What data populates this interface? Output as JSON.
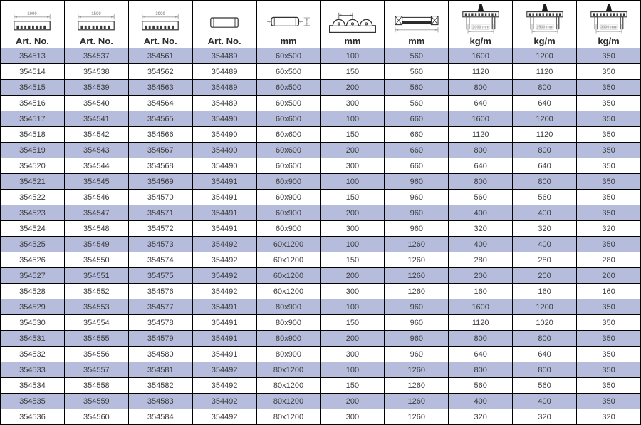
{
  "table": {
    "columns": [
      {
        "label": "Art. No.",
        "icon": "roller-track-side-icon",
        "icon_label": "1000"
      },
      {
        "label": "Art. No.",
        "icon": "roller-track-side-icon",
        "icon_label": "1500"
      },
      {
        "label": "Art. No.",
        "icon": "roller-track-side-icon",
        "icon_label": "3000"
      },
      {
        "label": "Art. No.",
        "icon": "rail-segment-icon",
        "icon_label": ""
      },
      {
        "label": "mm",
        "icon": "roller-dimension-icon",
        "icon_label": ""
      },
      {
        "label": "mm",
        "icon": "roller-pitch-icon",
        "icon_label": ""
      },
      {
        "label": "mm",
        "icon": "track-cross-section-icon",
        "icon_label": ""
      },
      {
        "label": "kg/m",
        "icon": "load-capacity-icon",
        "icon_label": "1000 mm"
      },
      {
        "label": "kg/m",
        "icon": "load-capacity-icon",
        "icon_label": "1500 mm"
      },
      {
        "label": "kg/m",
        "icon": "load-capacity-icon",
        "icon_label": "3000 mm"
      }
    ],
    "rows": [
      [
        "354513",
        "354537",
        "354561",
        "354489",
        "60x500",
        "100",
        "560",
        "1600",
        "1200",
        "350"
      ],
      [
        "354514",
        "354538",
        "354562",
        "354489",
        "60x500",
        "150",
        "560",
        "1120",
        "1120",
        "350"
      ],
      [
        "354515",
        "354539",
        "354563",
        "354489",
        "60x500",
        "200",
        "560",
        "800",
        "800",
        "350"
      ],
      [
        "354516",
        "354540",
        "354564",
        "354489",
        "60x500",
        "300",
        "560",
        "640",
        "640",
        "350"
      ],
      [
        "354517",
        "354541",
        "354565",
        "354490",
        "60x600",
        "100",
        "660",
        "1600",
        "1200",
        "350"
      ],
      [
        "354518",
        "354542",
        "354566",
        "354490",
        "60x600",
        "150",
        "660",
        "1120",
        "1120",
        "350"
      ],
      [
        "354519",
        "354543",
        "354567",
        "354490",
        "60x600",
        "200",
        "660",
        "800",
        "800",
        "350"
      ],
      [
        "354520",
        "354544",
        "354568",
        "354490",
        "60x600",
        "300",
        "660",
        "640",
        "640",
        "350"
      ],
      [
        "354521",
        "354545",
        "354569",
        "354491",
        "60x900",
        "100",
        "960",
        "800",
        "800",
        "350"
      ],
      [
        "354522",
        "354546",
        "354570",
        "354491",
        "60x900",
        "150",
        "960",
        "560",
        "560",
        "350"
      ],
      [
        "354523",
        "354547",
        "354571",
        "354491",
        "60x900",
        "200",
        "960",
        "400",
        "400",
        "350"
      ],
      [
        "354524",
        "354548",
        "354572",
        "354491",
        "60x900",
        "300",
        "960",
        "320",
        "320",
        "320"
      ],
      [
        "354525",
        "354549",
        "354573",
        "354492",
        "60x1200",
        "100",
        "1260",
        "400",
        "400",
        "350"
      ],
      [
        "354526",
        "354550",
        "354574",
        "354492",
        "60x1200",
        "150",
        "1260",
        "280",
        "280",
        "280"
      ],
      [
        "354527",
        "354551",
        "354575",
        "354492",
        "60x1200",
        "200",
        "1260",
        "200",
        "200",
        "200"
      ],
      [
        "354528",
        "354552",
        "354576",
        "354492",
        "60x1200",
        "300",
        "1260",
        "160",
        "160",
        "160"
      ],
      [
        "354529",
        "354553",
        "354577",
        "354491",
        "80x900",
        "100",
        "960",
        "1600",
        "1200",
        "350"
      ],
      [
        "354530",
        "354554",
        "354578",
        "354491",
        "80x900",
        "150",
        "960",
        "1120",
        "1020",
        "350"
      ],
      [
        "354531",
        "354555",
        "354579",
        "354491",
        "80x900",
        "200",
        "960",
        "800",
        "800",
        "350"
      ],
      [
        "354532",
        "354556",
        "354580",
        "354491",
        "80x900",
        "300",
        "960",
        "640",
        "640",
        "350"
      ],
      [
        "354533",
        "354557",
        "354581",
        "354492",
        "80x1200",
        "100",
        "1260",
        "800",
        "800",
        "350"
      ],
      [
        "354534",
        "354558",
        "354582",
        "354492",
        "80x1200",
        "150",
        "1260",
        "560",
        "560",
        "350"
      ],
      [
        "354535",
        "354559",
        "354583",
        "354492",
        "80x1200",
        "200",
        "1260",
        "400",
        "400",
        "350"
      ],
      [
        "354536",
        "354560",
        "354584",
        "354492",
        "80x1200",
        "300",
        "1260",
        "320",
        "320",
        "320"
      ]
    ]
  },
  "colors": {
    "row_alt": "#b6bcdb",
    "row_base": "#ffffff",
    "border": "#000000",
    "text": "#3d3d3d",
    "dim_text": "#9a9a9a"
  }
}
